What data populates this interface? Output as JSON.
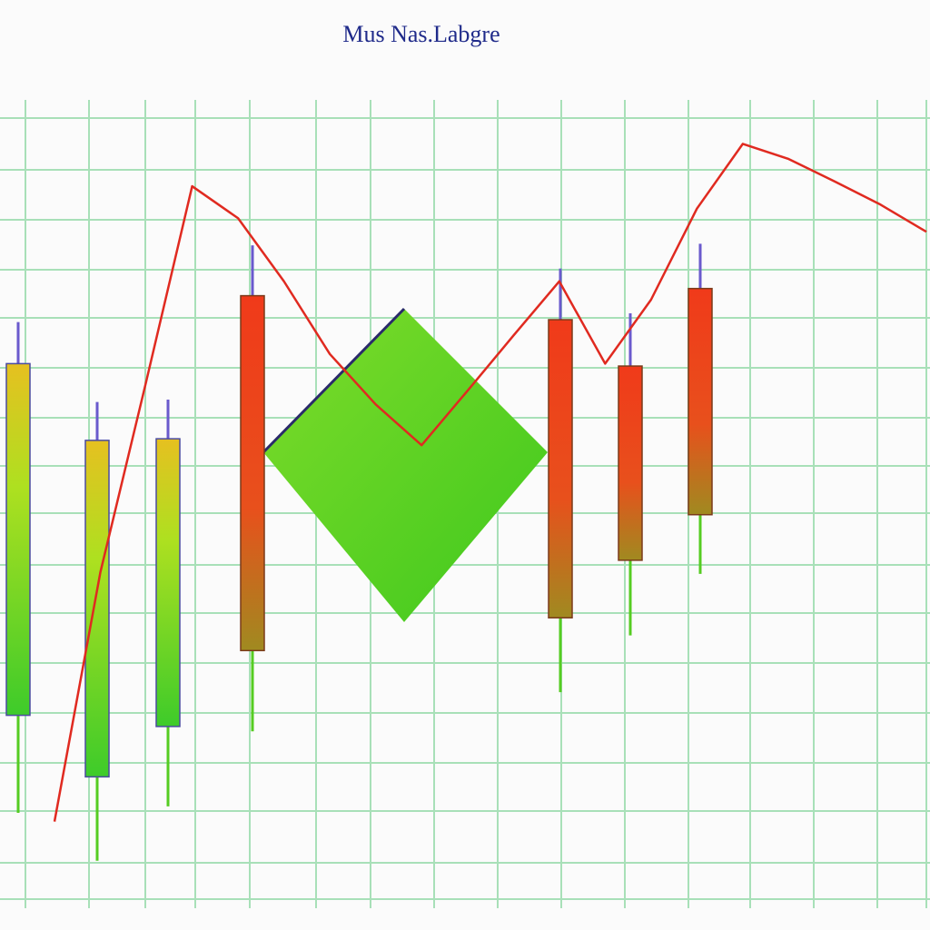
{
  "chart_data": {
    "type": "candlestick",
    "title": "Mus Nas.Labgre",
    "categories": [
      null,
      null,
      null,
      null,
      null,
      null,
      null
    ],
    "open": [
      23.0,
      15.3,
      21.6,
      75.5,
      72.5,
      66.7,
      76.4
    ],
    "high": [
      72.2,
      62.2,
      62.5,
      81.8,
      78.9,
      73.3,
      82.0
    ],
    "low": [
      10.8,
      4.8,
      11.6,
      21.0,
      25.9,
      33.0,
      40.7
    ],
    "close": [
      67.0,
      57.4,
      57.6,
      31.1,
      35.2,
      42.4,
      48.1
    ],
    "up_color": "#55cc22",
    "down_color": "#e8401c",
    "line": {
      "color": "#e02a20",
      "values": [
        9.7,
        40.9,
        64.8,
        89.2,
        85.2,
        77.3,
        68.2,
        61.9,
        56.8,
        63.6,
        70.5,
        77.3,
        67.0,
        75.0,
        86.4,
        94.5,
        92.6,
        89.8,
        86.9,
        83.5
      ]
    },
    "ylim": [
      0,
      100
    ],
    "grid": true
  }
}
